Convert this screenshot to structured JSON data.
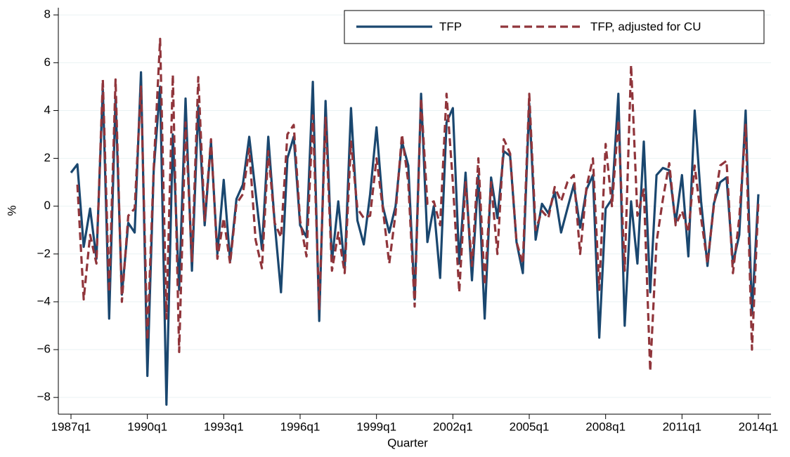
{
  "chart_data": {
    "type": "line",
    "x_label": "Quarter",
    "y_label": "%",
    "categories": [
      "1987q1",
      null,
      null,
      null,
      null,
      null,
      null,
      null,
      null,
      null,
      null,
      null,
      "1990q1",
      null,
      null,
      null,
      null,
      null,
      null,
      null,
      null,
      null,
      null,
      null,
      "1993q1",
      null,
      null,
      null,
      null,
      null,
      null,
      null,
      null,
      null,
      null,
      null,
      "1996q1",
      null,
      null,
      null,
      null,
      null,
      null,
      null,
      null,
      null,
      null,
      null,
      "1999q1",
      null,
      null,
      null,
      null,
      null,
      null,
      null,
      null,
      null,
      null,
      null,
      "2002q1",
      null,
      null,
      null,
      null,
      null,
      null,
      null,
      null,
      null,
      null,
      null,
      "2005q1",
      null,
      null,
      null,
      null,
      null,
      null,
      null,
      null,
      null,
      null,
      null,
      "2008q1",
      null,
      null,
      null,
      null,
      null,
      null,
      null,
      null,
      null,
      null,
      null,
      "2011q1",
      null,
      null,
      null,
      null,
      null,
      null,
      null,
      null,
      null,
      null,
      null,
      "2014q1"
    ],
    "series": [
      {
        "name": "TFP",
        "color": "#1a476f",
        "dash": false,
        "values": [
          1.4,
          1.75,
          -1.7,
          -0.1,
          -2.2,
          4.9,
          -4.7,
          4.5,
          -3.7,
          -0.7,
          -1.1,
          5.6,
          -7.1,
          1.5,
          5.0,
          -8.3,
          3.0,
          -3.5,
          4.5,
          -2.7,
          4.2,
          -0.8,
          2.7,
          -2.0,
          1.1,
          -2.3,
          0.3,
          0.9,
          2.9,
          0.6,
          -1.8,
          2.9,
          -0.7,
          -3.6,
          2.0,
          2.9,
          -0.8,
          -1.3,
          5.2,
          -4.8,
          4.4,
          -2.3,
          0.2,
          -2.6,
          4.1,
          -0.6,
          -1.6,
          0.5,
          3.3,
          0.0,
          -1.1,
          0.0,
          2.7,
          1.7,
          -3.9,
          4.7,
          -1.5,
          0.0,
          -3.0,
          3.5,
          4.1,
          -2.4,
          1.4,
          -3.1,
          1.3,
          -4.7,
          1.2,
          -0.5,
          2.3,
          2.1,
          -1.5,
          -2.8,
          4.3,
          -1.4,
          0.1,
          -0.3,
          0.6,
          -1.1,
          -0.1,
          0.9,
          -0.9,
          0.7,
          1.3,
          -5.5,
          -0.1,
          0.3,
          4.7,
          -5.0,
          0.2,
          -2.4,
          2.7,
          -3.6,
          1.3,
          1.6,
          1.5,
          -0.7,
          1.3,
          -2.1,
          4.0,
          0.2,
          -2.5,
          0.1,
          1.0,
          1.2,
          -2.4,
          -1.2,
          4.0,
          -4.5,
          0.5
        ]
      },
      {
        "name": "TFP, adjusted for CU",
        "color": "#90353b",
        "dash": true,
        "values": [
          null,
          0.9,
          -3.9,
          -1.2,
          -2.4,
          5.3,
          -3.6,
          5.3,
          -4.0,
          -0.4,
          -0.1,
          5.0,
          -5.6,
          1.6,
          7.0,
          -4.7,
          5.5,
          -6.1,
          3.5,
          -2.3,
          5.4,
          -0.6,
          2.8,
          -2.2,
          -0.5,
          -2.4,
          0.1,
          0.5,
          2.4,
          -1.4,
          -2.6,
          2.3,
          -0.7,
          -1.3,
          3.0,
          3.4,
          -0.6,
          -2.1,
          3.8,
          -4.3,
          3.7,
          -2.7,
          -1.1,
          -2.8,
          2.7,
          -0.1,
          -0.5,
          -0.4,
          2.0,
          -0.1,
          -2.4,
          -0.3,
          3.0,
          1.0,
          -4.2,
          4.5,
          0.1,
          0.2,
          -0.8,
          4.7,
          1.0,
          -3.6,
          1.0,
          -2.5,
          2.0,
          -3.3,
          1.0,
          -2.0,
          2.8,
          2.2,
          -1.5,
          -2.4,
          4.7,
          -1.0,
          -0.2,
          -0.5,
          0.8,
          0.2,
          1.0,
          1.3,
          -2.0,
          0.8,
          2.0,
          -3.5,
          2.6,
          0.0,
          3.6,
          -2.7,
          5.9,
          -0.4,
          0.7,
          -6.9,
          -1.5,
          0.3,
          1.8,
          -0.8,
          -0.2,
          -1.1,
          1.7,
          -0.5,
          -2.4,
          0.0,
          1.7,
          1.9,
          -2.8,
          -0.5,
          3.4,
          -6.0,
          0.2
        ]
      }
    ],
    "ylim": [
      -8.7,
      8.3
    ],
    "yticks": [
      {
        "value": -8,
        "label": "−8"
      },
      {
        "value": -6,
        "label": "−6"
      },
      {
        "value": -4,
        "label": "−4"
      },
      {
        "value": -2,
        "label": "−2"
      },
      0,
      2,
      4,
      6,
      8
    ],
    "grid": true,
    "legend": "top-right"
  }
}
